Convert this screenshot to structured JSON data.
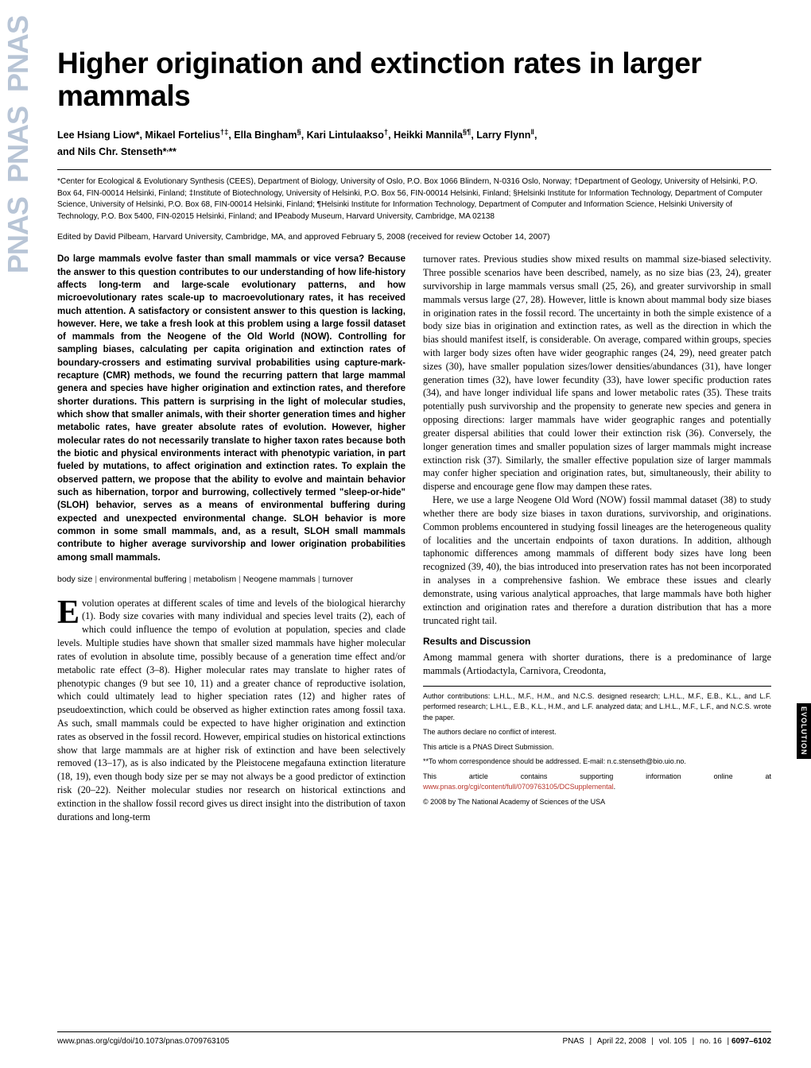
{
  "journal": {
    "name_repeat": "PNAS",
    "side_tab": "EVOLUTION"
  },
  "paper": {
    "title": "Higher origination and extinction rates in larger mammals",
    "authors_html": "Lee Hsiang Liow*, Mikael Fortelius<span class='sup'>†‡</span>, Ella Bingham<span class='sup'>§</span>, Kari Lintulaakso<span class='sup'>†</span>, Heikki Mannila<span class='sup'>§¶</span>, Larry Flynn<span class='sup'>‖</span>, and Nils Chr. Stenseth*<span class='sup'>,</span>**",
    "affiliations": "*Center for Ecological & Evolutionary Synthesis (CEES), Department of Biology, University of Oslo, P.O. Box 1066 Blindern, N-0316 Oslo, Norway; †Department of Geology, University of Helsinki, P.O. Box 64, FIN-00014 Helsinki, Finland; ‡Institute of Biotechnology, University of Helsinki, P.O. Box 56, FIN-00014 Helsinki, Finland; §Helsinki Institute for Information Technology, Department of Computer Science, University of Helsinki, P.O. Box 68, FIN-00014 Helsinki, Finland; ¶Helsinki Institute for Information Technology, Department of Computer and Information Science, Helsinki University of Technology, P.O. Box 5400, FIN-02015 Helsinki, Finland; and ‖Peabody Museum, Harvard University, Cambridge, MA 02138",
    "edited": "Edited by David Pilbeam, Harvard University, Cambridge, MA, and approved February 5, 2008 (received for review October 14, 2007)",
    "abstract": "Do large mammals evolve faster than small mammals or vice versa? Because the answer to this question contributes to our understanding of how life-history affects long-term and large-scale evolutionary patterns, and how microevolutionary rates scale-up to macroevolutionary rates, it has received much attention. A satisfactory or consistent answer to this question is lacking, however. Here, we take a fresh look at this problem using a large fossil dataset of mammals from the Neogene of the Old World (NOW). Controlling for sampling biases, calculating per capita origination and extinction rates of boundary-crossers and estimating survival probabilities using capture-mark-recapture (CMR) methods, we found the recurring pattern that large mammal genera and species have higher origination and extinction rates, and therefore shorter durations. This pattern is surprising in the light of molecular studies, which show that smaller animals, with their shorter generation times and higher metabolic rates, have greater absolute rates of evolution. However, higher molecular rates do not necessarily translate to higher taxon rates because both the biotic and physical environments interact with phenotypic variation, in part fueled by mutations, to affect origination and extinction rates. To explain the observed pattern, we propose that the ability to evolve and maintain behavior such as hibernation, torpor and burrowing, collectively termed \"sleep-or-hide\" (SLOH) behavior, serves as a means of environmental buffering during expected and unexpected environmental change. SLOH behavior is more common in some small mammals, and, as a result, SLOH small mammals contribute to higher average survivorship and lower origination probabilities among small mammals.",
    "keywords": [
      "body size",
      "environmental buffering",
      "metabolism",
      "Neogene mammals",
      "turnover"
    ],
    "body_col1_p1": "volution operates at different scales of time and levels of the biological hierarchy (1). Body size covaries with many individual and species level traits (2), each of which could influence the tempo of evolution at population, species and clade levels. Multiple studies have shown that smaller sized mammals have higher molecular rates of evolution in absolute time, possibly because of a generation time effect and/or metabolic rate effect (3–8). Higher molecular rates may translate to higher rates of phenotypic changes (9 but see 10, 11) and a greater chance of reproductive isolation, which could ultimately lead to higher speciation rates (12) and higher rates of pseudoextinction, which could be observed as higher extinction rates among fossil taxa. As such, small mammals could be expected to have higher origination and extinction rates as observed in the fossil record. However, empirical studies on historical extinctions show that large mammals are at higher risk of extinction and have been selectively removed (13–17), as is also indicated by the Pleistocene megafauna extinction literature (18, 19), even though body size per se may not always be a good predictor of extinction risk (20–22). Neither molecular studies nor research on historical extinctions and extinction in the shallow fossil record gives us direct insight into the distribution of taxon durations and long-term",
    "body_col2_p1": "turnover rates. Previous studies show mixed results on mammal size-biased selectivity. Three possible scenarios have been described, namely, as no size bias (23, 24), greater survivorship in large mammals versus small (25, 26), and greater survivorship in small mammals versus large (27, 28). However, little is known about mammal body size biases in origination rates in the fossil record. The uncertainty in both the simple existence of a body size bias in origination and extinction rates, as well as the direction in which the bias should manifest itself, is considerable. On average, compared within groups, species with larger body sizes often have wider geographic ranges (24, 29), need greater patch sizes (30), have smaller population sizes/lower densities/abundances (31), have longer generation times (32), have lower fecundity (33), have lower specific production rates (34), and have longer individual life spans and lower metabolic rates (35). These traits potentially push survivorship and the propensity to generate new species and genera in opposing directions: larger mammals have wider geographic ranges and potentially greater dispersal abilities that could lower their extinction risk (36). Conversely, the longer generation times and smaller population sizes of larger mammals might increase extinction risk (37). Similarly, the smaller effective population size of larger mammals may confer higher speciation and origination rates, but, simultaneously, their ability to disperse and encourage gene flow may dampen these rates.",
    "body_col2_p2": "Here, we use a large Neogene Old Word (NOW) fossil mammal dataset (38) to study whether there are body size biases in taxon durations, survivorship, and originations. Common problems encountered in studying fossil lineages are the heterogeneous quality of localities and the uncertain endpoints of taxon durations. In addition, although taphonomic differences among mammals of different body sizes have long been recognized (39, 40), the bias introduced into preservation rates has not been incorporated in analyses in a comprehensive fashion. We embrace these issues and clearly demonstrate, using various analytical approaches, that large mammals have both higher extinction and origination rates and therefore a duration distribution that has a more truncated right tail.",
    "results_head": "Results and Discussion",
    "body_col2_p3": "Among mammal genera with shorter durations, there is a predominance of large mammals (Artiodactyla, Carnivora, Creodonta,",
    "footnotes": {
      "contributions": "Author contributions: L.H.L., M.F., H.M., and N.C.S. designed research; L.H.L., M.F., E.B., K.L., and L.F. performed research; L.H.L., E.B., K.L., H.M., and L.F. analyzed data; and L.H.L., M.F., L.F., and N.C.S. wrote the paper.",
      "conflict": "The authors declare no conflict of interest.",
      "submission": "This article is a PNAS Direct Submission.",
      "correspondence": "**To whom correspondence should be addressed. E-mail: n.c.stenseth@bio.uio.no.",
      "supporting_pre": "This article contains supporting information online at ",
      "supporting_link": "www.pnas.org/cgi/content/full/0709763105/DCSupplemental",
      "copyright": "© 2008 by The National Academy of Sciences of the USA"
    }
  },
  "footer": {
    "doi": "www.pnas.org/cgi/doi/10.1073/pnas.0709763105",
    "journal": "PNAS",
    "date": "April 22, 2008",
    "vol": "vol. 105",
    "no": "no. 16",
    "pages": "6097–6102"
  },
  "colors": {
    "pnas_band": "#b8c5d6",
    "link": "#b8352c"
  }
}
